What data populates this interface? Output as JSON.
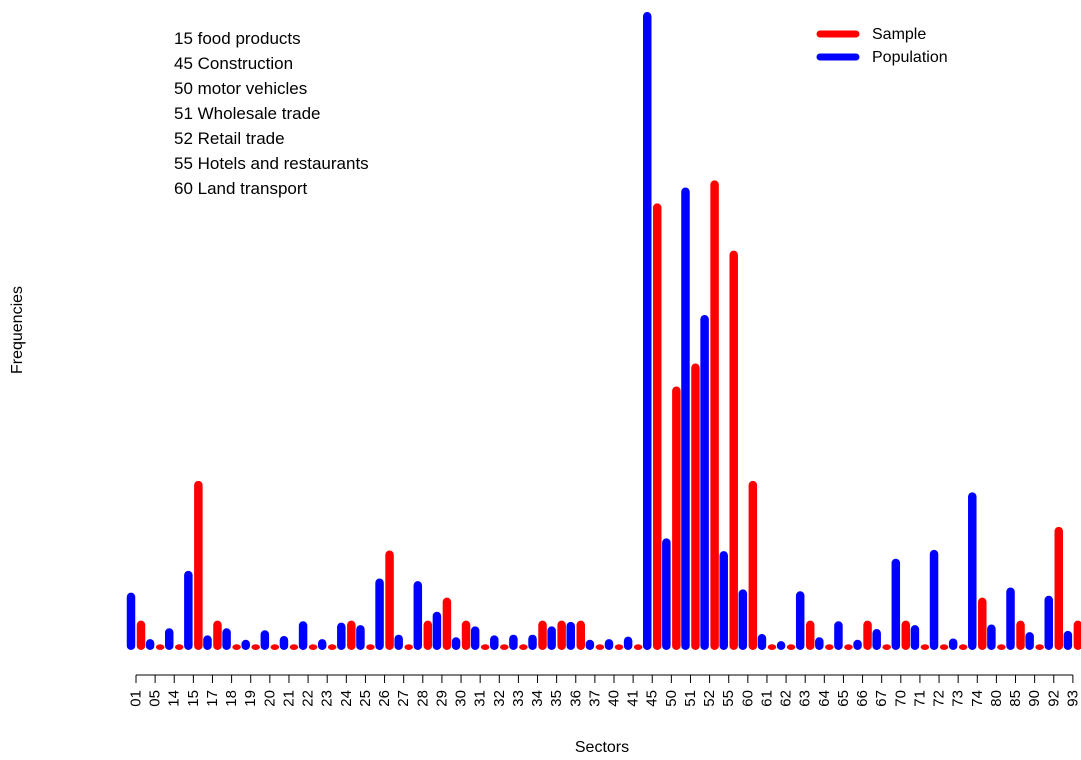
{
  "chart_data": {
    "type": "bar",
    "title": "",
    "xlabel": "Sectors",
    "ylabel": "Frequencies",
    "ylim": [
      0,
      100
    ],
    "grid": false,
    "legend_position": "top-right",
    "categories": [
      "01",
      "05",
      "14",
      "15",
      "17",
      "18",
      "19",
      "20",
      "21",
      "22",
      "23",
      "24",
      "25",
      "26",
      "27",
      "28",
      "29",
      "30",
      "31",
      "32",
      "33",
      "34",
      "35",
      "36",
      "37",
      "40",
      "41",
      "45",
      "50",
      "51",
      "52",
      "55",
      "60",
      "61",
      "62",
      "63",
      "64",
      "65",
      "66",
      "67",
      "70",
      "71",
      "72",
      "73",
      "74",
      "80",
      "85",
      "90",
      "92",
      "93"
    ],
    "series": [
      {
        "name": "Population",
        "color": "#0000ff",
        "values": [
          9.0,
          1.7,
          3.4,
          12.4,
          2.3,
          3.4,
          1.6,
          3.1,
          2.2,
          4.5,
          1.7,
          4.3,
          3.9,
          11.2,
          2.4,
          10.8,
          6.0,
          2.0,
          3.7,
          2.3,
          2.4,
          2.4,
          3.7,
          4.4,
          1.6,
          1.7,
          2.1,
          100.0,
          17.5,
          72.5,
          52.5,
          15.5,
          9.5,
          2.5,
          1.4,
          9.2,
          2.0,
          4.5,
          1.6,
          3.3,
          14.3,
          3.9,
          15.7,
          1.8,
          24.7,
          4.0,
          9.8,
          2.8,
          8.5,
          3.0
        ]
      },
      {
        "name": "Sample",
        "color": "#ff0000",
        "values": [
          4.6,
          0.9,
          0.9,
          26.5,
          4.6,
          0.9,
          0.9,
          0.9,
          0.9,
          0.9,
          0.9,
          4.6,
          0.9,
          15.6,
          0.9,
          4.6,
          8.2,
          4.6,
          0.9,
          0.9,
          0.9,
          4.6,
          4.6,
          4.6,
          0.9,
          0.9,
          0.9,
          70.0,
          41.3,
          44.9,
          73.6,
          62.6,
          26.5,
          0.9,
          0.9,
          4.6,
          0.9,
          0.9,
          4.6,
          0.9,
          4.6,
          0.9,
          0.9,
          0.9,
          8.2,
          0.9,
          4.6,
          0.9,
          19.3,
          4.6
        ]
      }
    ],
    "annotations": [
      "15 food products",
      "45 Construction",
      "50 motor vehicles",
      "51 Wholesale trade",
      "52 Retail trade",
      "55 Hotels and restaurants",
      "60 Land transport"
    ],
    "legend": [
      {
        "label": "Sample",
        "color": "#ff0000"
      },
      {
        "label": "Population",
        "color": "#0000ff"
      }
    ]
  }
}
